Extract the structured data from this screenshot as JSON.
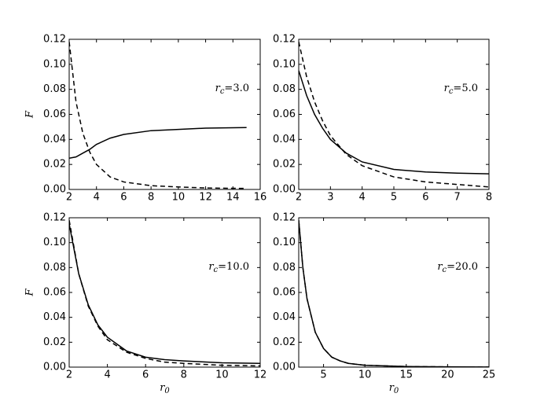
{
  "chart_data": [
    {
      "type": "line",
      "annotation": {
        "base": "r",
        "sub": "c",
        "rest": "=3.0"
      },
      "ylabel": "F",
      "x": [
        2,
        2.5,
        3,
        3.5,
        4,
        5,
        6,
        8,
        10,
        12,
        15
      ],
      "series": [
        {
          "color": "#000000",
          "linestyle": "solid",
          "values": [
            0.025,
            0.026,
            0.029,
            0.032,
            0.036,
            0.041,
            0.044,
            0.047,
            0.048,
            0.049,
            0.0495
          ]
        },
        {
          "color": "#000000",
          "linestyle": "dashed",
          "values": [
            0.118,
            0.07,
            0.045,
            0.03,
            0.02,
            0.01,
            0.006,
            0.003,
            0.002,
            0.0012,
            0.0008
          ]
        }
      ],
      "xlim": [
        2,
        16
      ],
      "xticks": [
        2,
        4,
        6,
        8,
        10,
        12,
        14,
        16
      ],
      "ylim": [
        0,
        0.12
      ],
      "yticks": [
        {
          "value": 0,
          "label": "0.00"
        },
        {
          "value": 0.02,
          "label": "0.02"
        },
        {
          "value": 0.04,
          "label": "0.04"
        },
        {
          "value": 0.06,
          "label": "0.06"
        },
        {
          "value": 0.08,
          "label": "0.08"
        },
        {
          "value": 0.1,
          "label": "0.10"
        },
        {
          "value": 0.12,
          "label": "0.12"
        }
      ]
    },
    {
      "type": "line",
      "annotation": {
        "base": "r",
        "sub": "c",
        "rest": "=5.0"
      },
      "x": [
        2,
        2.25,
        2.5,
        2.75,
        3,
        3.5,
        4,
        5,
        6,
        7,
        8
      ],
      "series": [
        {
          "color": "#000000",
          "linestyle": "solid",
          "values": [
            0.095,
            0.075,
            0.06,
            0.049,
            0.04,
            0.029,
            0.022,
            0.016,
            0.014,
            0.013,
            0.0125
          ]
        },
        {
          "color": "#000000",
          "linestyle": "dashed",
          "values": [
            0.118,
            0.09,
            0.07,
            0.055,
            0.043,
            0.028,
            0.019,
            0.01,
            0.006,
            0.004,
            0.002
          ]
        }
      ],
      "xlim": [
        2,
        8
      ],
      "xticks": [
        2,
        3,
        4,
        5,
        6,
        7,
        8
      ],
      "ylim": [
        0,
        0.12
      ],
      "yticks": [
        {
          "value": 0,
          "label": "0.00"
        },
        {
          "value": 0.02,
          "label": "0.02"
        },
        {
          "value": 0.04,
          "label": "0.04"
        },
        {
          "value": 0.06,
          "label": "0.06"
        },
        {
          "value": 0.08,
          "label": "0.08"
        },
        {
          "value": 0.1,
          "label": "0.10"
        },
        {
          "value": 0.12,
          "label": "0.12"
        }
      ]
    },
    {
      "type": "line",
      "annotation": {
        "base": "r",
        "sub": "c",
        "rest": "=10.0"
      },
      "ylabel": "F",
      "xlabel": {
        "base": "r",
        "sub": "0"
      },
      "x": [
        2,
        2.5,
        3,
        3.5,
        4,
        5,
        6,
        7,
        8,
        10,
        12
      ],
      "series": [
        {
          "color": "#000000",
          "linestyle": "solid",
          "values": [
            0.115,
            0.075,
            0.05,
            0.034,
            0.024,
            0.013,
            0.008,
            0.006,
            0.005,
            0.0035,
            0.003
          ]
        },
        {
          "color": "#000000",
          "linestyle": "dashed",
          "values": [
            0.118,
            0.075,
            0.049,
            0.033,
            0.022,
            0.012,
            0.007,
            0.004,
            0.003,
            0.0015,
            0.001
          ]
        }
      ],
      "xlim": [
        2,
        12
      ],
      "xticks": [
        2,
        4,
        6,
        8,
        10,
        12
      ],
      "ylim": [
        0,
        0.12
      ],
      "yticks": [
        {
          "value": 0,
          "label": "0.00"
        },
        {
          "value": 0.02,
          "label": "0.02"
        },
        {
          "value": 0.04,
          "label": "0.04"
        },
        {
          "value": 0.06,
          "label": "0.06"
        },
        {
          "value": 0.08,
          "label": "0.08"
        },
        {
          "value": 0.1,
          "label": "0.10"
        },
        {
          "value": 0.12,
          "label": "0.12"
        }
      ]
    },
    {
      "type": "line",
      "annotation": {
        "base": "r",
        "sub": "c",
        "rest": "=20.0"
      },
      "xlabel": {
        "base": "r",
        "sub": "0"
      },
      "x": [
        2,
        2.5,
        3,
        4,
        5,
        6,
        7,
        8,
        10,
        15,
        20,
        25
      ],
      "series": [
        {
          "color": "#000000",
          "linestyle": "solid",
          "values": [
            0.118,
            0.08,
            0.055,
            0.028,
            0.015,
            0.008,
            0.005,
            0.003,
            0.0015,
            0.0005,
            0.0002,
            0.0001
          ]
        },
        {
          "color": "#000000",
          "linestyle": "dashed",
          "values": [
            0.118,
            0.08,
            0.055,
            0.028,
            0.015,
            0.008,
            0.005,
            0.003,
            0.0015,
            0.0005,
            0.0002,
            0.0001
          ]
        }
      ],
      "xlim": [
        2,
        25
      ],
      "xticks": [
        5,
        10,
        15,
        20,
        25
      ],
      "ylim": [
        0,
        0.12
      ],
      "yticks": [
        {
          "value": 0,
          "label": "0.00"
        },
        {
          "value": 0.02,
          "label": "0.02"
        },
        {
          "value": 0.04,
          "label": "0.04"
        },
        {
          "value": 0.06,
          "label": "0.06"
        },
        {
          "value": 0.08,
          "label": "0.08"
        },
        {
          "value": 0.1,
          "label": "0.10"
        },
        {
          "value": 0.12,
          "label": "0.12"
        }
      ]
    }
  ]
}
